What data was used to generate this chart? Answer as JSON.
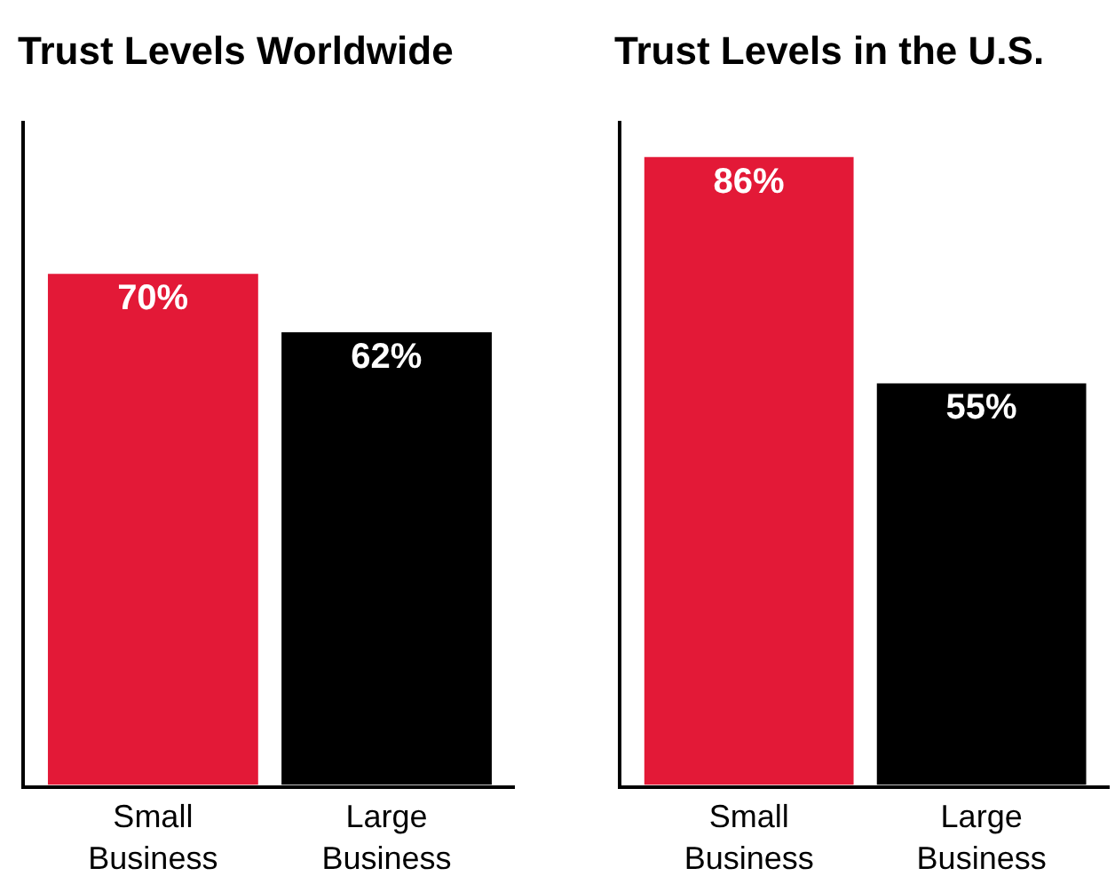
{
  "chart_data": [
    {
      "type": "bar",
      "title": "Trust Levels Worldwide",
      "categories": [
        "Small Business",
        "Large Business"
      ],
      "values": [
        70,
        62
      ],
      "value_labels": [
        "70%",
        "62%"
      ],
      "colors": [
        "#e31937",
        "#000000"
      ],
      "ylim": [
        0,
        91
      ],
      "tick_labels": "x"
    },
    {
      "type": "bar",
      "title": "Trust Levels in the U.S.",
      "categories": [
        "Small Business",
        "Large Business"
      ],
      "values": [
        86,
        55
      ],
      "value_labels": [
        "86%",
        "55%"
      ],
      "colors": [
        "#e31937",
        "#000000"
      ],
      "ylim": [
        0,
        91
      ],
      "tick_labels": "x"
    }
  ]
}
